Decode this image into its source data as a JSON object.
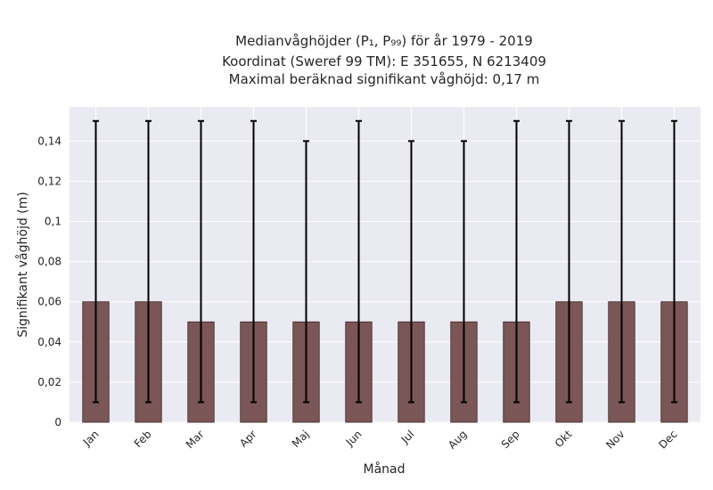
{
  "chart_data": {
    "type": "bar",
    "title_lines": [
      "Medianvåghöjder (P₁, P₉₉) för år 1979 - 2019",
      "Koordinat (Sweref 99 TM): E 351655, N 6213409",
      "Maximal beräknad signifikant våghöjd: 0,17 m"
    ],
    "xlabel": "Månad",
    "ylabel": "Signifikant våghöjd (m)",
    "categories": [
      "Jan",
      "Feb",
      "Mar",
      "Apr",
      "Maj",
      "Jun",
      "Jul",
      "Aug",
      "Sep",
      "Okt",
      "Nov",
      "Dec"
    ],
    "series": [
      {
        "values": [
          0.06,
          0.06,
          0.05,
          0.05,
          0.05,
          0.05,
          0.05,
          0.05,
          0.05,
          0.06,
          0.06,
          0.06
        ],
        "error_low": [
          0.01,
          0.01,
          0.01,
          0.01,
          0.01,
          0.01,
          0.01,
          0.01,
          0.01,
          0.01,
          0.01,
          0.01
        ],
        "error_high": [
          0.15,
          0.15,
          0.15,
          0.15,
          0.14,
          0.15,
          0.14,
          0.14,
          0.15,
          0.15,
          0.15,
          0.15
        ]
      }
    ],
    "ylim": [
      0,
      0.157
    ],
    "yticks": [
      0,
      0.02,
      0.04,
      0.06,
      0.08,
      0.1,
      0.12,
      0.14
    ],
    "ytick_labels": [
      "0",
      "0,02",
      "0,04",
      "0,06",
      "0,08",
      "0,1",
      "0,12",
      "0,14"
    ],
    "grid": true,
    "colors": {
      "bar": "#7a5656",
      "bar_edge": "#3d2626",
      "error": "#000000",
      "plot_bg": "#eaeaf2",
      "grid": "#ffffff"
    }
  }
}
